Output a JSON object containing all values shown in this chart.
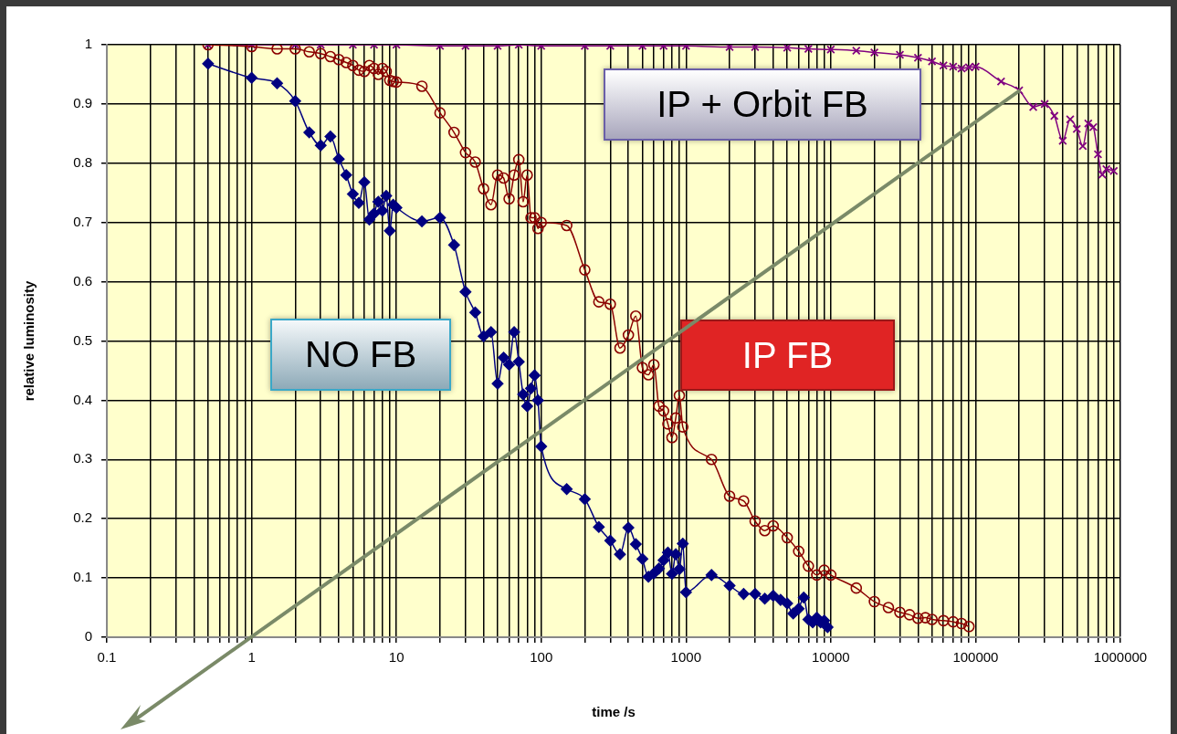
{
  "chart_data": {
    "type": "line",
    "xlabel": "time /s",
    "ylabel": "relative luminosity",
    "log": "x",
    "grid": true,
    "legend": false,
    "line_style": "solid",
    "xlim": [
      0.1,
      1000000
    ],
    "xticks": [
      0.1,
      1,
      10,
      100,
      1000,
      10000,
      100000,
      1000000
    ],
    "ylim": [
      0,
      1
    ],
    "yticks": [
      0,
      0.1,
      0.2,
      0.3,
      0.4,
      0.5,
      0.6,
      0.7,
      0.8,
      0.9,
      1
    ],
    "series": [
      {
        "name": "NO FB",
        "color": "#000080",
        "marker": "diamond",
        "x": [
          0.5,
          1,
          1.5,
          2,
          2.5,
          3,
          3.5,
          4,
          4.5,
          5,
          5.5,
          6,
          6.5,
          7,
          7.5,
          8,
          8.5,
          9,
          9.5,
          10,
          15,
          20,
          25,
          30,
          35,
          40,
          45,
          50,
          55,
          60,
          65,
          70,
          75,
          80,
          85,
          90,
          95,
          100,
          150,
          200,
          250,
          300,
          350,
          400,
          450,
          500,
          550,
          600,
          650,
          700,
          750,
          800,
          850,
          900,
          950,
          1000,
          1500,
          2000,
          2500,
          3000,
          3500,
          4000,
          4500,
          5000,
          5500,
          6000,
          6500,
          7000,
          7500,
          8000,
          8500,
          9000,
          9500
        ],
        "values": [
          0.968,
          0.944,
          0.935,
          0.905,
          0.852,
          0.83,
          0.845,
          0.807,
          0.78,
          0.748,
          0.733,
          0.768,
          0.705,
          0.715,
          0.735,
          0.72,
          0.745,
          0.686,
          0.73,
          0.725,
          0.702,
          0.708,
          0.662,
          0.583,
          0.548,
          0.508,
          0.515,
          0.428,
          0.472,
          0.46,
          0.515,
          0.465,
          0.41,
          0.39,
          0.42,
          0.442,
          0.4,
          0.322,
          0.25,
          0.233,
          0.186,
          0.163,
          0.14,
          0.185,
          0.157,
          0.132,
          0.102,
          0.108,
          0.116,
          0.13,
          0.143,
          0.107,
          0.14,
          0.115,
          0.158,
          0.076,
          0.105,
          0.087,
          0.073,
          0.073,
          0.065,
          0.07,
          0.063,
          0.057,
          0.04,
          0.048,
          0.067,
          0.03,
          0.025,
          0.033,
          0.025,
          0.028,
          0.017
        ]
      },
      {
        "name": "IP FB",
        "color": "#8b0000",
        "marker": "circle",
        "x": [
          0.5,
          1,
          1.5,
          2,
          2.5,
          3,
          3.5,
          4,
          4.5,
          5,
          5.5,
          6,
          6.5,
          7,
          7.5,
          8,
          8.5,
          9,
          9.5,
          10,
          15,
          20,
          25,
          30,
          35,
          40,
          45,
          50,
          55,
          60,
          65,
          70,
          75,
          80,
          85,
          90,
          95,
          100,
          150,
          200,
          250,
          300,
          350,
          400,
          450,
          500,
          550,
          600,
          650,
          700,
          750,
          800,
          850,
          900,
          950,
          1500,
          2000,
          2500,
          3000,
          3500,
          4000,
          5000,
          6000,
          7000,
          8000,
          9000,
          10000,
          15000,
          20000,
          25000,
          30000,
          35000,
          40000,
          45000,
          50000,
          60000,
          70000,
          80000,
          90000
        ],
        "values": [
          1,
          0.997,
          0.993,
          0.993,
          0.988,
          0.985,
          0.98,
          0.975,
          0.97,
          0.965,
          0.957,
          0.955,
          0.965,
          0.96,
          0.95,
          0.96,
          0.955,
          0.94,
          0.938,
          0.937,
          0.93,
          0.885,
          0.852,
          0.818,
          0.802,
          0.757,
          0.73,
          0.78,
          0.775,
          0.74,
          0.78,
          0.806,
          0.735,
          0.78,
          0.708,
          0.708,
          0.69,
          0.7,
          0.695,
          0.62,
          0.566,
          0.562,
          0.488,
          0.51,
          0.542,
          0.455,
          0.443,
          0.46,
          0.39,
          0.382,
          0.36,
          0.337,
          0.37,
          0.408,
          0.355,
          0.3,
          0.238,
          0.23,
          0.196,
          0.18,
          0.188,
          0.168,
          0.145,
          0.12,
          0.105,
          0.113,
          0.105,
          0.083,
          0.06,
          0.05,
          0.042,
          0.038,
          0.032,
          0.033,
          0.03,
          0.028,
          0.026,
          0.023,
          0.018
        ]
      },
      {
        "name": "IP + Orbit FB",
        "color": "#800080",
        "marker": "cross",
        "x": [
          0.5,
          1,
          2,
          3,
          5,
          7,
          10,
          20,
          30,
          50,
          70,
          100,
          200,
          300,
          500,
          700,
          1000,
          2000,
          3000,
          5000,
          7000,
          10000,
          15000,
          20000,
          30000,
          40000,
          50000,
          60000,
          70000,
          80000,
          90000,
          100000,
          150000,
          200000,
          250000,
          300000,
          350000,
          400000,
          450000,
          500000,
          550000,
          600000,
          650000,
          700000,
          750000,
          800000,
          900000
        ],
        "values": [
          1,
          1,
          1,
          1,
          1,
          1,
          1,
          0.998,
          0.998,
          0.998,
          1,
          0.998,
          0.998,
          0.998,
          0.998,
          0.998,
          0.998,
          0.996,
          0.996,
          0.995,
          0.993,
          0.992,
          0.99,
          0.987,
          0.983,
          0.978,
          0.972,
          0.965,
          0.963,
          0.96,
          0.962,
          0.963,
          0.938,
          0.923,
          0.895,
          0.9,
          0.88,
          0.838,
          0.874,
          0.858,
          0.829,
          0.867,
          0.861,
          0.815,
          0.781,
          0.79,
          0.787
        ]
      }
    ]
  }
}
